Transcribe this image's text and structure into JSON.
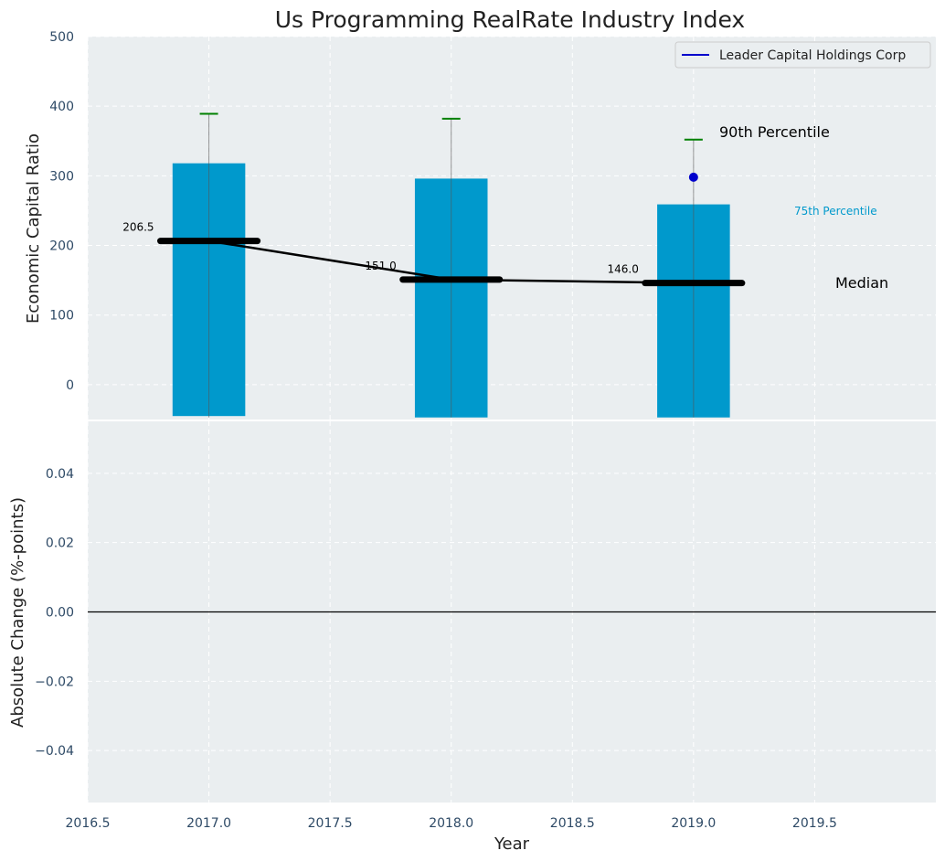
{
  "chart_data": {
    "title": "Us Programming RealRate Industry Index",
    "xlabel": "Year",
    "xlim": [
      2016.5,
      2020.0
    ],
    "x_ticks": [
      "2016.5",
      "2017.0",
      "2017.5",
      "2018.0",
      "2018.5",
      "2019.0",
      "2019.5"
    ],
    "x_tick_values": [
      2016.5,
      2017.0,
      2017.5,
      2018.0,
      2018.5,
      2019.0,
      2019.5
    ],
    "grid": true,
    "top_panel": {
      "type": "bar",
      "ylabel": "Economic Capital Ratio",
      "ylim": [
        -50,
        500
      ],
      "y_ticks": [
        "0",
        "100",
        "200",
        "300",
        "400",
        "500"
      ],
      "y_tick_values": [
        0,
        100,
        200,
        300,
        400,
        500
      ],
      "bar_color": "#0099cc",
      "bars": [
        {
          "x": 2017,
          "bottom": -45,
          "top": 318
        },
        {
          "x": 2018,
          "bottom": -47,
          "top": 296
        },
        {
          "x": 2019,
          "bottom": -47,
          "top": 259
        }
      ],
      "whiskers": [
        {
          "x": 2017,
          "low": -47,
          "high": 389
        },
        {
          "x": 2018,
          "low": -47,
          "high": 382
        },
        {
          "x": 2019,
          "low": -47,
          "high": 352
        }
      ],
      "whisker_cap_color": "#008000",
      "median": {
        "x": [
          2017,
          2018,
          2019
        ],
        "values": [
          206.5,
          151.0,
          146.0
        ],
        "labels": [
          "206.5",
          "151.0",
          "146.0"
        ],
        "color": "#000000"
      },
      "company_point": {
        "x": 2019,
        "y": 298,
        "color": "#0000cc"
      },
      "annotations": {
        "p90": "90th Percentile",
        "p75": "75th Percentile",
        "median": "Median"
      },
      "legend": {
        "position": "top-right",
        "entries": [
          {
            "label": "Leader Capital Holdings Corp",
            "color": "#0000cc"
          }
        ]
      }
    },
    "bottom_panel": {
      "type": "line",
      "ylabel": "Absolute Change (%-points)",
      "ylim": [
        -0.055,
        0.055
      ],
      "y_ticks": [
        "−0.04",
        "−0.02",
        "0.00",
        "0.02",
        "0.04"
      ],
      "y_tick_values": [
        -0.04,
        -0.02,
        0.0,
        0.02,
        0.04
      ],
      "zero_line": 0.0
    }
  }
}
